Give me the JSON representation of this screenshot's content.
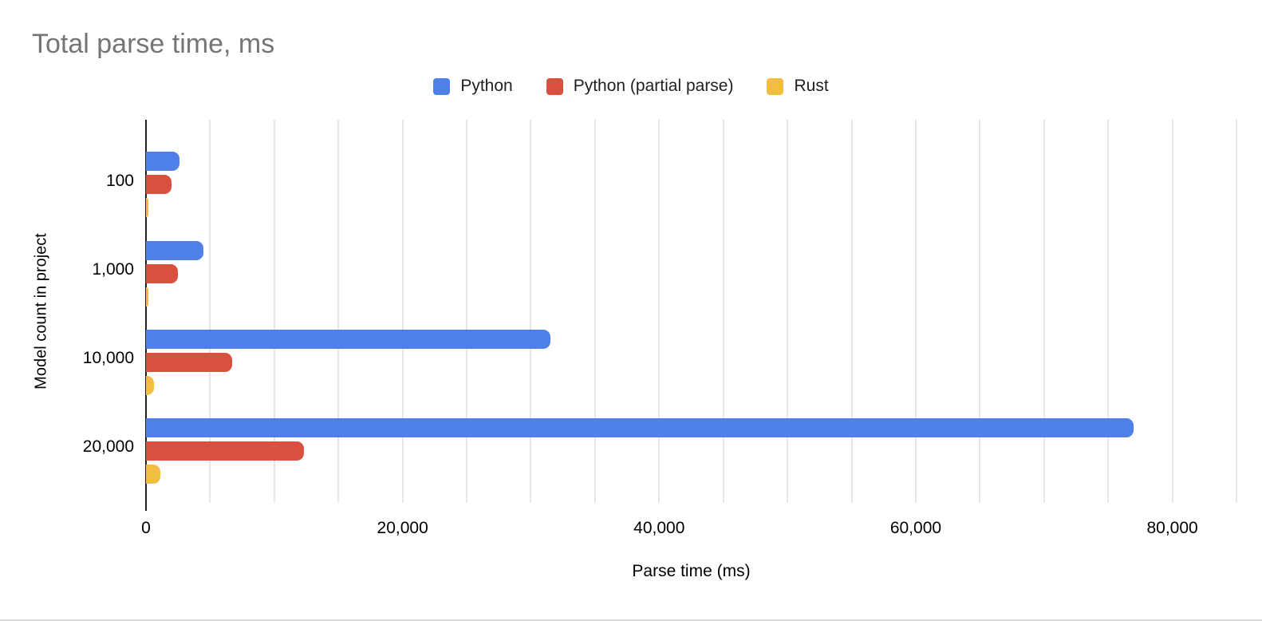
{
  "title": "Total parse time, ms",
  "chart_data": {
    "type": "bar",
    "orientation": "horizontal",
    "title": "Total parse time, ms",
    "xlabel": "Parse time (ms)",
    "ylabel": "Model count in project",
    "categories": [
      "100",
      "1,000",
      "10,000",
      "20,000"
    ],
    "series": [
      {
        "name": "Python",
        "color": "#4e80e8",
        "values": [
          2600,
          4500,
          31500,
          77000
        ]
      },
      {
        "name": "Python (partial parse)",
        "color": "#d9503f",
        "values": [
          2000,
          2500,
          6700,
          12300
        ]
      },
      {
        "name": "Rust",
        "color": "#f2be42",
        "values": [
          120,
          160,
          650,
          1150
        ]
      }
    ],
    "x_axis": {
      "min": 0,
      "max": 85000,
      "gridline_step": 5000,
      "label_step": 20000,
      "tick_labels": [
        "0",
        "20,000",
        "40,000",
        "60,000",
        "80,000"
      ]
    },
    "grid": true,
    "legend_position": "top",
    "colors": {
      "title_text": "#757575",
      "axis_text": "#000000",
      "gridline": "#e6e6e6",
      "axis_line": "#212121",
      "background": "#ffffff"
    }
  }
}
